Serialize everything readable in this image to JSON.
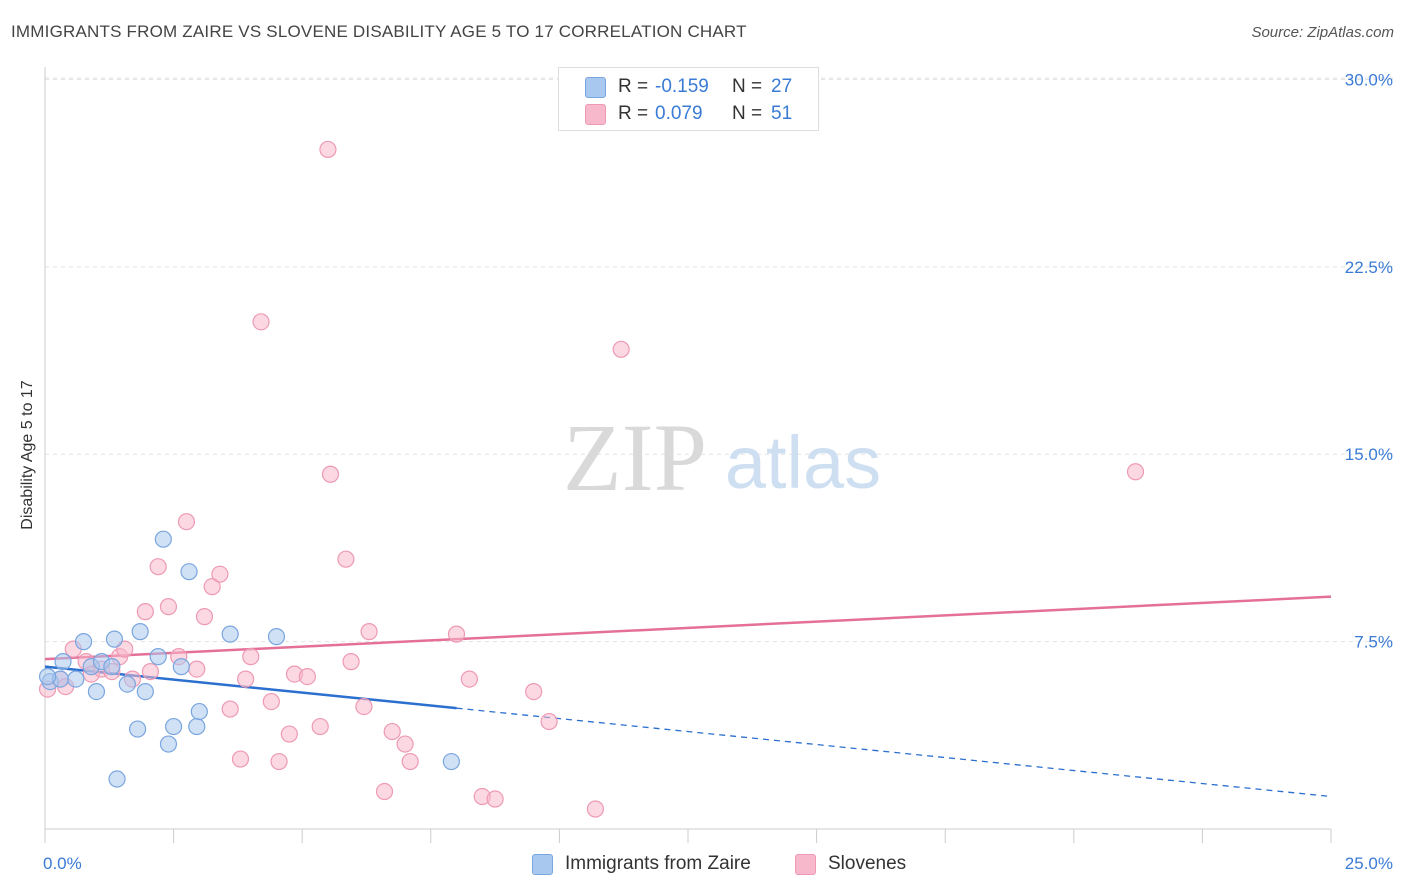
{
  "title": "IMMIGRANTS FROM ZAIRE VS SLOVENE DISABILITY AGE 5 TO 17 CORRELATION CHART",
  "source": "Source: ZipAtlas.com",
  "watermark": {
    "zip": "ZIP",
    "atlas": "atlas"
  },
  "legend_top": {
    "rows": [
      {
        "r_label": "R =",
        "r_value": "-0.159",
        "n_label": "N =",
        "n_value": "27"
      },
      {
        "r_label": "R =",
        "r_value": "0.079",
        "n_label": "N =",
        "n_value": "51"
      }
    ]
  },
  "legend_bottom": {
    "items": [
      "Immigrants from Zaire",
      "Slovenes"
    ]
  },
  "colors": {
    "blue_fill": "#a9c8ef",
    "blue_stroke": "#7aa6df",
    "blue_line": "#2b6fcf",
    "pink_fill": "#f7b8cb",
    "pink_stroke": "#ee9ab4",
    "pink_line": "#e4709a",
    "grid": "#e2e2e2",
    "tick_label": "#3a7bd5"
  },
  "chart_data": {
    "type": "scatter",
    "title": "IMMIGRANTS FROM ZAIRE VS SLOVENE DISABILITY AGE 5 TO 17 CORRELATION CHART",
    "xlabel": "",
    "ylabel": "Disability Age 5 to 17",
    "xlim": [
      0,
      25
    ],
    "ylim": [
      0,
      30.5
    ],
    "x_tick_labels": [
      "0.0%",
      "25.0%"
    ],
    "y_ticks": [
      7.5,
      15.0,
      22.5,
      30.0
    ],
    "y_tick_labels": [
      "7.5%",
      "15.0%",
      "22.5%",
      "30.0%"
    ],
    "series": [
      {
        "name": "Immigrants from Zaire",
        "r": -0.159,
        "n": 27,
        "trend": {
          "x0": 0,
          "y0": 6.5,
          "x1": 25,
          "y1": 1.3,
          "solid_until_x": 8
        },
        "points": [
          [
            0.1,
            5.9
          ],
          [
            0.3,
            6.0
          ],
          [
            0.35,
            6.7
          ],
          [
            0.6,
            6.0
          ],
          [
            0.75,
            7.5
          ],
          [
            0.9,
            6.5
          ],
          [
            1.0,
            5.5
          ],
          [
            1.1,
            6.7
          ],
          [
            1.3,
            6.5
          ],
          [
            1.35,
            7.6
          ],
          [
            1.4,
            2.0
          ],
          [
            1.6,
            5.8
          ],
          [
            1.8,
            4.0
          ],
          [
            1.85,
            7.9
          ],
          [
            1.95,
            5.5
          ],
          [
            2.2,
            6.9
          ],
          [
            2.3,
            11.6
          ],
          [
            2.4,
            3.4
          ],
          [
            2.5,
            4.1
          ],
          [
            2.65,
            6.5
          ],
          [
            2.8,
            10.3
          ],
          [
            2.95,
            4.1
          ],
          [
            3.0,
            4.7
          ],
          [
            3.6,
            7.8
          ],
          [
            4.5,
            7.7
          ],
          [
            7.9,
            2.7
          ],
          [
            0.05,
            6.1
          ]
        ]
      },
      {
        "name": "Slovenes",
        "r": 0.079,
        "n": 51,
        "trend": {
          "x0": 0,
          "y0": 6.8,
          "x1": 25,
          "y1": 9.3
        },
        "points": [
          [
            0.05,
            5.6
          ],
          [
            0.3,
            6.0
          ],
          [
            0.4,
            5.7
          ],
          [
            0.55,
            7.2
          ],
          [
            0.8,
            6.7
          ],
          [
            0.9,
            6.2
          ],
          [
            1.1,
            6.4
          ],
          [
            1.3,
            6.3
          ],
          [
            1.45,
            6.9
          ],
          [
            1.55,
            7.2
          ],
          [
            1.7,
            6.0
          ],
          [
            1.95,
            8.7
          ],
          [
            2.05,
            6.3
          ],
          [
            2.2,
            10.5
          ],
          [
            2.4,
            8.9
          ],
          [
            2.6,
            6.9
          ],
          [
            2.75,
            12.3
          ],
          [
            2.95,
            6.4
          ],
          [
            3.1,
            8.5
          ],
          [
            3.25,
            9.7
          ],
          [
            3.4,
            10.2
          ],
          [
            3.6,
            4.8
          ],
          [
            3.8,
            2.8
          ],
          [
            3.9,
            6.0
          ],
          [
            4.0,
            6.9
          ],
          [
            4.2,
            20.3
          ],
          [
            4.4,
            5.1
          ],
          [
            4.55,
            2.7
          ],
          [
            4.75,
            3.8
          ],
          [
            4.85,
            6.2
          ],
          [
            5.1,
            6.1
          ],
          [
            5.35,
            4.1
          ],
          [
            5.5,
            27.2
          ],
          [
            5.55,
            14.2
          ],
          [
            5.85,
            10.8
          ],
          [
            5.95,
            6.7
          ],
          [
            6.2,
            4.9
          ],
          [
            6.3,
            7.9
          ],
          [
            6.6,
            1.5
          ],
          [
            6.75,
            3.9
          ],
          [
            7.0,
            3.4
          ],
          [
            7.1,
            2.7
          ],
          [
            8.0,
            7.8
          ],
          [
            8.25,
            6.0
          ],
          [
            8.5,
            1.3
          ],
          [
            8.75,
            1.2
          ],
          [
            9.5,
            5.5
          ],
          [
            9.8,
            4.3
          ],
          [
            10.7,
            0.8
          ],
          [
            11.2,
            19.2
          ],
          [
            21.2,
            14.3
          ]
        ]
      }
    ]
  }
}
